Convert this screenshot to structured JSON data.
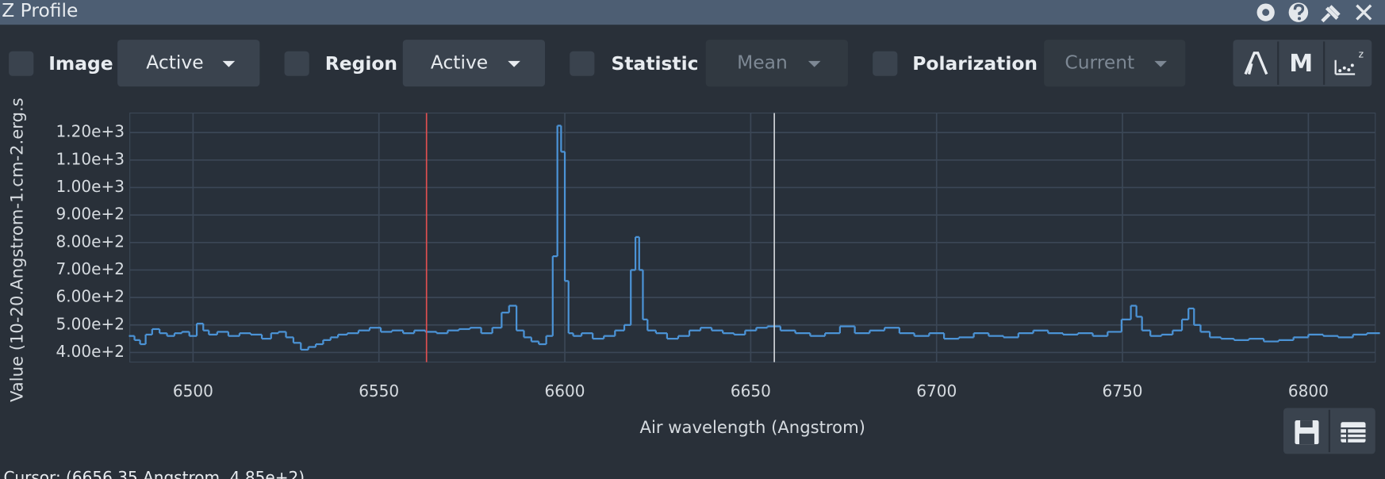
{
  "window": {
    "title": "Z Profile"
  },
  "toolbar": {
    "image": {
      "label": "Image",
      "value": "Active"
    },
    "region": {
      "label": "Region",
      "value": "Active"
    },
    "statistic": {
      "label": "Statistic",
      "value": "Mean"
    },
    "polarization": {
      "label": "Polarization",
      "value": "Current"
    },
    "moments_button": "M"
  },
  "status": "Cursor: (6656.35 Angstrom, 4.85e+2)",
  "chart_data": {
    "type": "step",
    "x_label": "Air wavelength (Angstrom)",
    "y_label": "Value (10-20.Angstrom-1.cm-2.erg.s",
    "xlim": [
      6483,
      6818
    ],
    "ylim": [
      365,
      1271
    ],
    "xticks": [
      6500,
      6550,
      6600,
      6650,
      6700,
      6750,
      6800
    ],
    "yticks": [
      {
        "value": 400,
        "label": "4.00e+2"
      },
      {
        "value": 500,
        "label": "5.00e+2"
      },
      {
        "value": 600,
        "label": "6.00e+2"
      },
      {
        "value": 700,
        "label": "7.00e+2"
      },
      {
        "value": 800,
        "label": "8.00e+2"
      },
      {
        "value": 900,
        "label": "9.00e+2"
      },
      {
        "value": 1000,
        "label": "1.00e+3"
      },
      {
        "value": 1100,
        "label": "1.10e+3"
      },
      {
        "value": 1200,
        "label": "1.20e+3"
      }
    ],
    "grid": true,
    "color": "#4b93d6",
    "marker_x": 6562.8,
    "marker_color": "#e05050",
    "cursor_x": 6656.35,
    "cursor_color": "#d0d4d8",
    "x": [
      6483.5,
      6485,
      6486.5,
      6488,
      6490,
      6492,
      6494,
      6496,
      6498,
      6500,
      6502,
      6503.5,
      6505,
      6508,
      6511,
      6514,
      6517,
      6520,
      6522,
      6524,
      6526,
      6528,
      6530,
      6532,
      6534,
      6536,
      6538,
      6540,
      6543,
      6546,
      6549,
      6552,
      6555,
      6558,
      6561,
      6564,
      6567,
      6570,
      6573,
      6576,
      6579,
      6582,
      6584,
      6586,
      6588,
      6590,
      6592,
      6594,
      6596,
      6597.5,
      6598.5,
      6599.5,
      6600.5,
      6601.5,
      6603,
      6606,
      6609,
      6612,
      6615,
      6617,
      6618.5,
      6619.5,
      6620.5,
      6621.5,
      6623,
      6626,
      6629,
      6632,
      6635,
      6638,
      6641,
      6644,
      6647,
      6650,
      6653,
      6656,
      6660,
      6664,
      6668,
      6672,
      6676,
      6680,
      6684,
      6688,
      6692,
      6696,
      6700,
      6704,
      6708,
      6712,
      6716,
      6720,
      6724,
      6728,
      6732,
      6736,
      6740,
      6744,
      6748,
      6751.5,
      6753,
      6754.5,
      6756,
      6759,
      6762,
      6765,
      6767,
      6768.5,
      6770,
      6772,
      6775,
      6778,
      6782,
      6786,
      6790,
      6794,
      6798,
      6802,
      6806,
      6810,
      6814,
      6817.5
    ],
    "values": [
      460,
      445,
      430,
      465,
      485,
      470,
      460,
      470,
      475,
      460,
      505,
      480,
      465,
      475,
      460,
      470,
      465,
      450,
      470,
      475,
      455,
      435,
      410,
      420,
      430,
      445,
      455,
      465,
      470,
      480,
      490,
      475,
      480,
      470,
      480,
      475,
      470,
      480,
      485,
      490,
      470,
      490,
      545,
      570,
      480,
      455,
      440,
      430,
      460,
      750,
      1225,
      1130,
      660,
      470,
      460,
      470,
      450,
      460,
      480,
      500,
      700,
      820,
      700,
      520,
      480,
      470,
      450,
      460,
      480,
      490,
      480,
      470,
      465,
      480,
      490,
      495,
      480,
      470,
      460,
      470,
      495,
      470,
      480,
      490,
      470,
      460,
      470,
      450,
      455,
      470,
      460,
      455,
      470,
      480,
      470,
      465,
      470,
      460,
      475,
      520,
      570,
      530,
      480,
      460,
      465,
      480,
      520,
      560,
      500,
      475,
      455,
      450,
      445,
      450,
      440,
      445,
      455,
      465,
      460,
      455,
      465,
      470
    ]
  }
}
